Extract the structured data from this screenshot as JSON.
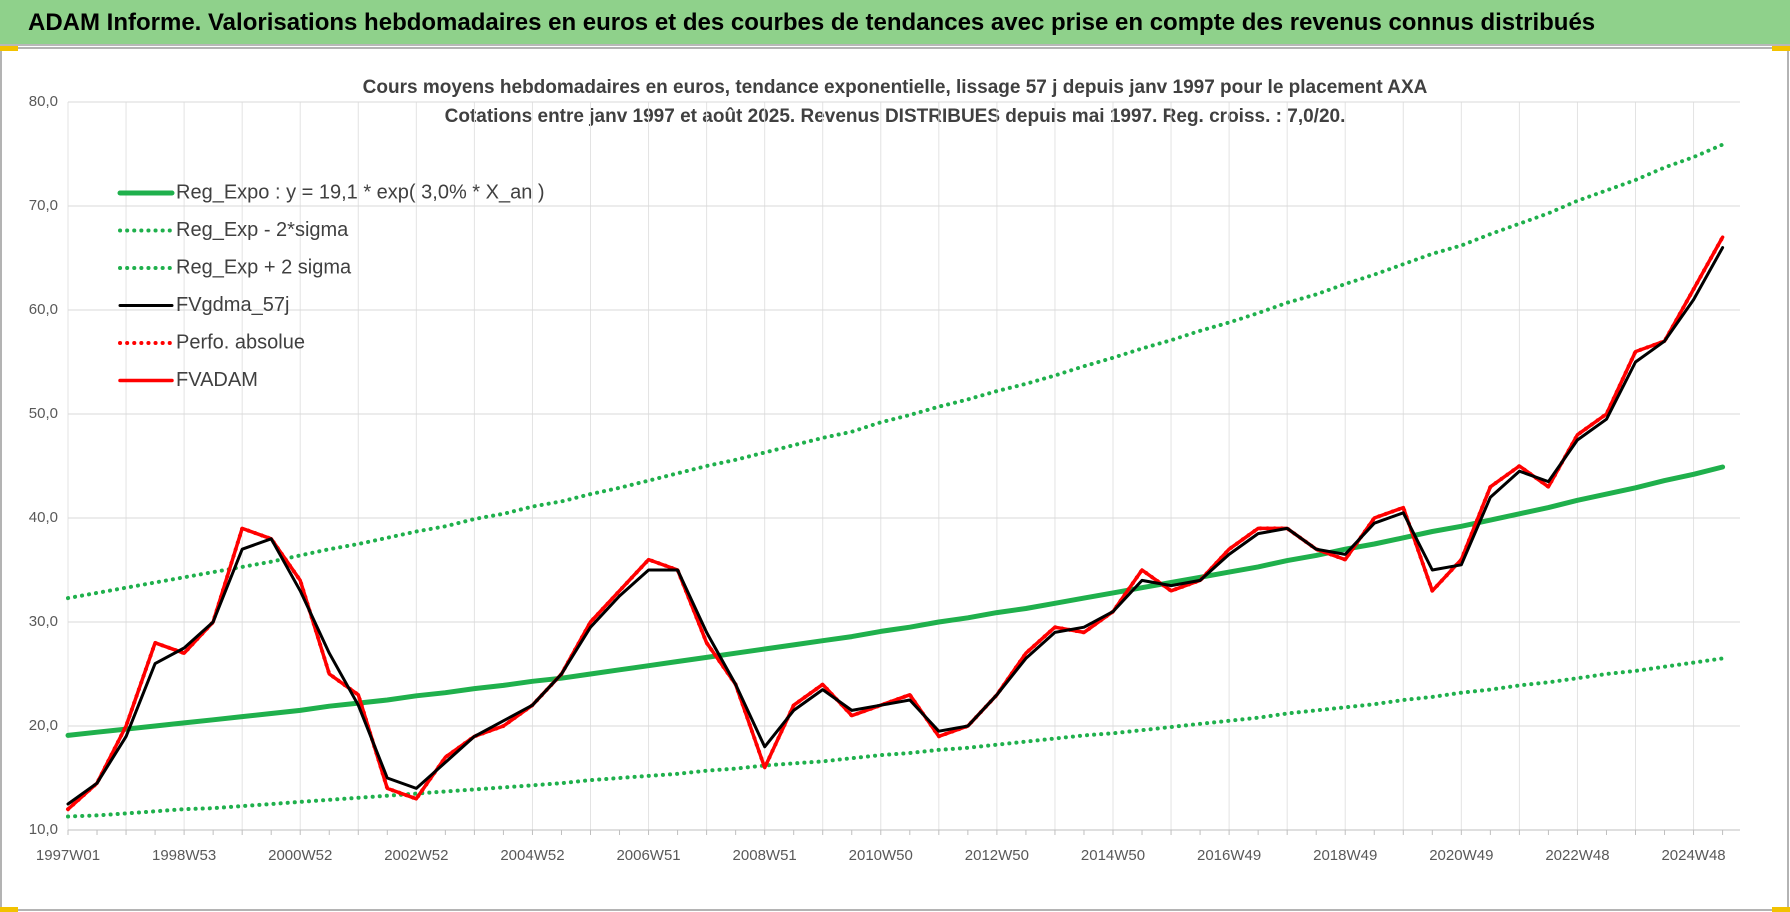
{
  "header": {
    "title": "ADAM Informe. Valorisations hebdomadaires en euros et des courbes de tendances avec prise en compte des revenus connus distribués"
  },
  "chart_data": {
    "type": "line",
    "title": "Cours moyens hebdomadaires en euros, tendance exponentielle, lissage 57 j depuis janv 1997 pour le placement AXA",
    "subtitle": "Cotations entre janv 1997 et août 2025. Revenus DISTRIBUES depuis mai 1997. Reg. croiss. : 7,0/20.",
    "categories": [
      "1997W01",
      null,
      null,
      null,
      "1998W53",
      null,
      null,
      null,
      "2000W52",
      null,
      null,
      null,
      "2002W52",
      null,
      null,
      null,
      "2004W52",
      null,
      null,
      null,
      "2006W51",
      null,
      null,
      null,
      "2008W51",
      null,
      null,
      null,
      "2010W50",
      null,
      null,
      null,
      "2012W50",
      null,
      null,
      null,
      "2014W50",
      null,
      null,
      null,
      "2016W49",
      null,
      null,
      null,
      "2018W49",
      null,
      null,
      null,
      "2020W49",
      null,
      null,
      null,
      "2022W48",
      null,
      null,
      null,
      "2024W48",
      null
    ],
    "ylim": [
      10,
      80
    ],
    "yticks": [
      {
        "value": 10,
        "label": "10,0"
      },
      {
        "value": 20,
        "label": "20,0"
      },
      {
        "value": 30,
        "label": "30,0"
      },
      {
        "value": 40,
        "label": "40,0"
      },
      {
        "value": 50,
        "label": "50,0"
      },
      {
        "value": 60,
        "label": "60,0"
      },
      {
        "value": 70,
        "label": "70,0"
      },
      {
        "value": 80,
        "label": "80,0"
      }
    ],
    "grid": true,
    "legend": "top-left",
    "series": [
      {
        "name": "Reg_Expo : y = 19,1 * exp( 3,0% *  X_an )",
        "color": "#1fb04c",
        "style": "solid",
        "values": [
          19.1,
          19.4,
          19.7,
          20.0,
          20.3,
          20.6,
          20.9,
          21.2,
          21.5,
          21.9,
          22.2,
          22.5,
          22.9,
          23.2,
          23.6,
          23.9,
          24.3,
          24.6,
          25.0,
          25.4,
          25.8,
          26.2,
          26.6,
          27.0,
          27.4,
          27.8,
          28.2,
          28.6,
          29.1,
          29.5,
          30.0,
          30.4,
          30.9,
          31.3,
          31.8,
          32.3,
          32.8,
          33.3,
          33.8,
          34.3,
          34.8,
          35.3,
          35.9,
          36.4,
          37.0,
          37.5,
          38.1,
          38.7,
          39.2,
          39.8,
          40.4,
          41.0,
          41.7,
          42.3,
          42.9,
          43.6,
          44.2,
          44.9
        ]
      },
      {
        "name": "Reg_Exp - 2*sigma",
        "color": "#1fb04c",
        "style": "dotted",
        "values": [
          11.3,
          11.4,
          11.6,
          11.8,
          12.0,
          12.1,
          12.3,
          12.5,
          12.7,
          12.9,
          13.1,
          13.3,
          13.5,
          13.7,
          13.9,
          14.1,
          14.3,
          14.5,
          14.8,
          15.0,
          15.2,
          15.4,
          15.7,
          15.9,
          16.2,
          16.4,
          16.6,
          16.9,
          17.2,
          17.4,
          17.7,
          17.9,
          18.2,
          18.5,
          18.8,
          19.1,
          19.3,
          19.6,
          19.9,
          20.2,
          20.5,
          20.8,
          21.2,
          21.5,
          21.8,
          22.1,
          22.5,
          22.8,
          23.2,
          23.5,
          23.9,
          24.2,
          24.6,
          25.0,
          25.3,
          25.7,
          26.1,
          26.5
        ]
      },
      {
        "name": "Reg_Exp + 2 sigma",
        "color": "#1fb04c",
        "style": "dotted",
        "values": [
          32.3,
          32.8,
          33.3,
          33.8,
          34.3,
          34.8,
          35.3,
          35.8,
          36.4,
          37.0,
          37.5,
          38.1,
          38.7,
          39.2,
          39.9,
          40.4,
          41.1,
          41.6,
          42.3,
          42.9,
          43.6,
          44.3,
          45.0,
          45.6,
          46.3,
          47.0,
          47.7,
          48.3,
          49.2,
          49.9,
          50.7,
          51.4,
          52.2,
          52.9,
          53.7,
          54.6,
          55.4,
          56.3,
          57.1,
          58.0,
          58.8,
          59.7,
          60.7,
          61.5,
          62.5,
          63.4,
          64.4,
          65.4,
          66.2,
          67.3,
          68.3,
          69.3,
          70.5,
          71.5,
          72.5,
          73.7,
          74.7,
          75.9
        ]
      },
      {
        "name": "FVgdma_57j",
        "color": "#000000",
        "style": "solid",
        "values": [
          12.5,
          14.5,
          19,
          26,
          27.5,
          30,
          37,
          38,
          33,
          27,
          22,
          15,
          14,
          16.5,
          19,
          20.5,
          22,
          25,
          29.5,
          32.5,
          35,
          35,
          29,
          24,
          18,
          21.5,
          23.5,
          21.5,
          22,
          22.5,
          19.5,
          20,
          23,
          26.5,
          29,
          29.5,
          31,
          34,
          33.5,
          34,
          36.5,
          38.5,
          39,
          37,
          36.5,
          39.5,
          40.5,
          35,
          35.5,
          42,
          44.5,
          43.5,
          47.5,
          49.5,
          55,
          57,
          61,
          66
        ]
      },
      {
        "name": "Perfo. absolue",
        "color": "#ff0000",
        "style": "dotted",
        "values": [
          12,
          14.5,
          20,
          28,
          27,
          30,
          39,
          38,
          34,
          25,
          23,
          14,
          13,
          17,
          19,
          20,
          22,
          25,
          30,
          33,
          36,
          35,
          28,
          24,
          16,
          22,
          24,
          21,
          22,
          23,
          19,
          20,
          23,
          27,
          29.5,
          29,
          31,
          35,
          33,
          34,
          37,
          39,
          39,
          37,
          36,
          40,
          41,
          33,
          36,
          43,
          45,
          43,
          48,
          50,
          56,
          57,
          62,
          67
        ]
      },
      {
        "name": "FVADAM",
        "color": "#ff0000",
        "style": "solid",
        "values": [
          12,
          14.5,
          20,
          28,
          27,
          30,
          39,
          38,
          34,
          25,
          23,
          14,
          13,
          17,
          19,
          20,
          22,
          25,
          30,
          33,
          36,
          35,
          28,
          24,
          16,
          22,
          24,
          21,
          22,
          23,
          19,
          20,
          23,
          27,
          29.5,
          29,
          31,
          35,
          33,
          34,
          37,
          39,
          39,
          37,
          36,
          40,
          41,
          33,
          36,
          43,
          45,
          43,
          48,
          50,
          56,
          57,
          62,
          67
        ]
      }
    ]
  }
}
